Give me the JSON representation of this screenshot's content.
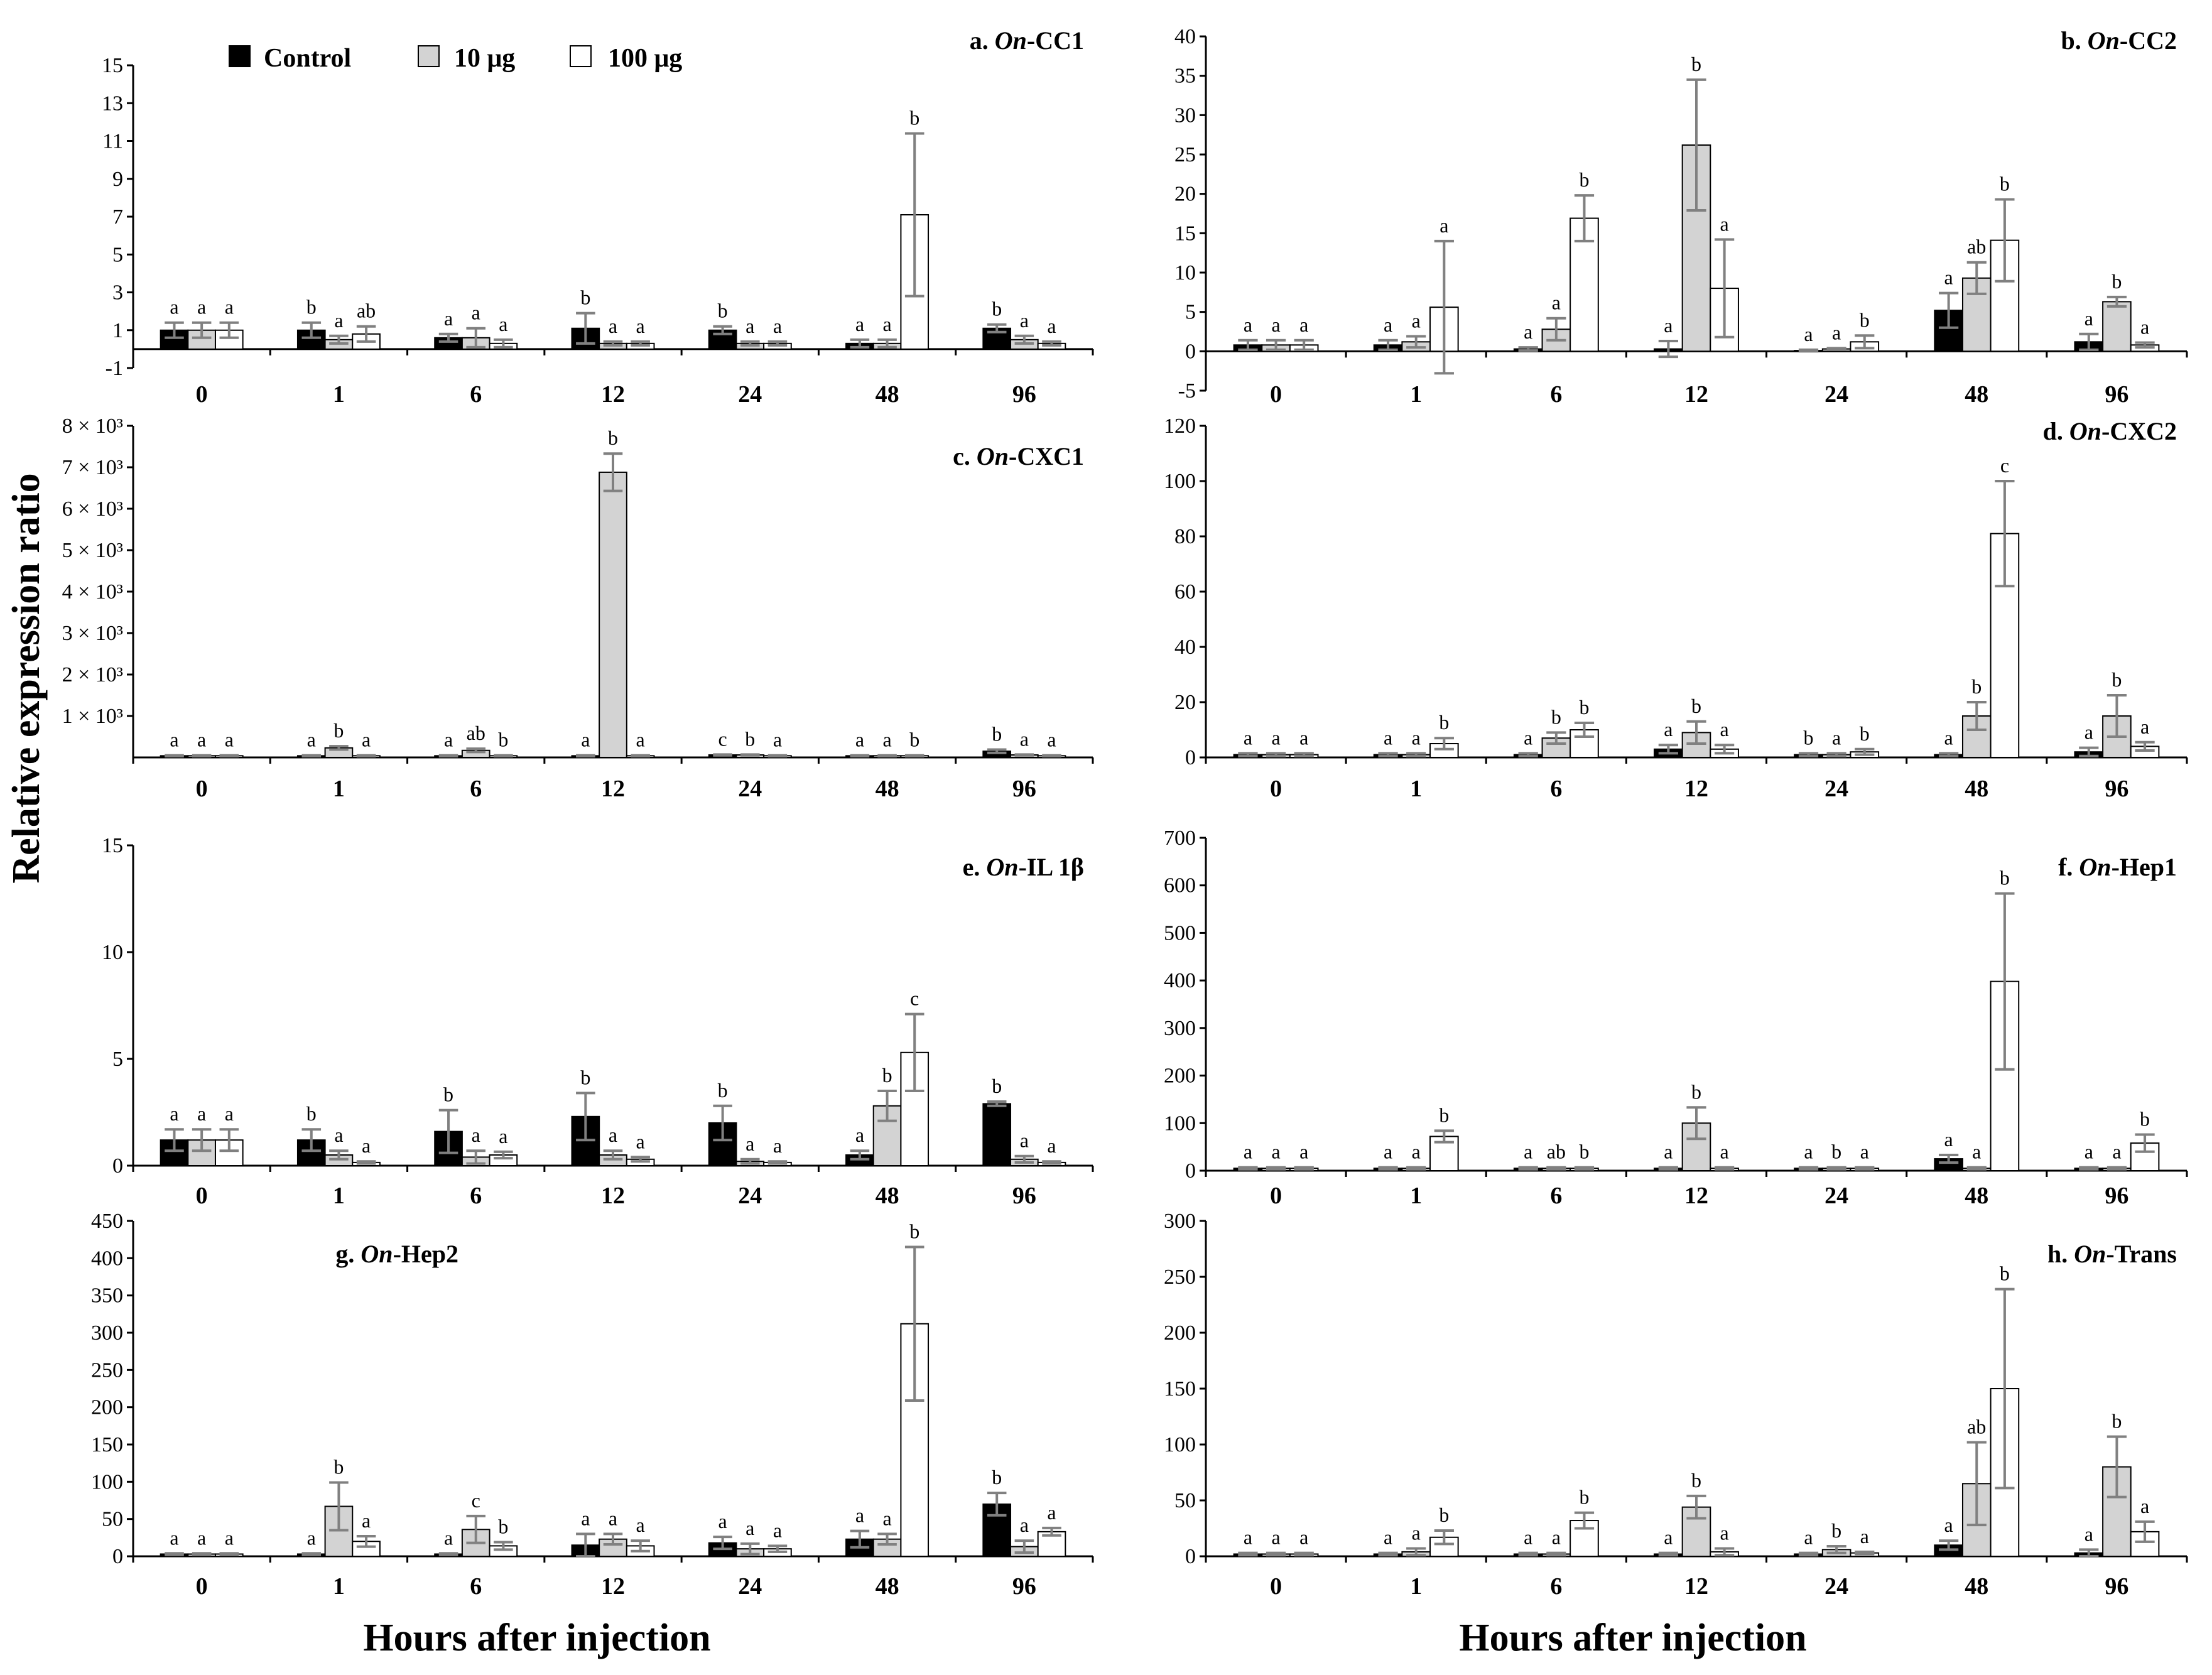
{
  "figure": {
    "y_axis_label": "Relative expression ratio",
    "x_axis_labels": [
      "Hours after injection",
      "Hours after injection"
    ]
  },
  "legend": {
    "items": [
      {
        "label": "Control",
        "color": "#000000"
      },
      {
        "label": "10 μg",
        "color": "#d3d3d3"
      },
      {
        "label": "100 μg",
        "color": "#ffffff"
      }
    ]
  },
  "chart_data": [
    {
      "type": "bar",
      "title": "a. On-CC1",
      "title_prefix": "a. ",
      "title_italic": "On",
      "title_suffix": "-CC1",
      "categories": [
        "0",
        "1",
        "6",
        "12",
        "24",
        "48",
        "96"
      ],
      "ylim": [
        -1,
        15
      ],
      "yticks": [
        -1,
        1,
        3,
        5,
        7,
        9,
        11,
        13,
        15
      ],
      "ytick_labels": [
        "-1",
        "1",
        "3",
        "5",
        "7",
        "9",
        "11",
        "13",
        "15"
      ],
      "series": [
        {
          "name": "Control",
          "values": [
            1.0,
            1.0,
            0.6,
            1.1,
            1.0,
            0.3,
            1.1
          ],
          "errors": [
            0.4,
            0.4,
            0.2,
            0.8,
            0.2,
            0.2,
            0.2
          ],
          "letters": [
            "a",
            "b",
            "a",
            "b",
            "b",
            "a",
            "b"
          ]
        },
        {
          "name": "10 μg",
          "values": [
            1.0,
            0.5,
            0.6,
            0.3,
            0.3,
            0.3,
            0.5
          ],
          "errors": [
            0.4,
            0.2,
            0.5,
            0.1,
            0.1,
            0.2,
            0.2
          ],
          "letters": [
            "a",
            "a",
            "a",
            "a",
            "a",
            "a",
            "a"
          ]
        },
        {
          "name": "100 μg",
          "values": [
            1.0,
            0.8,
            0.3,
            0.3,
            0.3,
            7.1,
            0.3
          ],
          "errors": [
            0.4,
            0.4,
            0.2,
            0.1,
            0.1,
            4.3,
            0.1
          ],
          "letters": [
            "a",
            "ab",
            "a",
            "a",
            "a",
            "b",
            "a"
          ]
        }
      ]
    },
    {
      "type": "bar",
      "title": "b. On-CC2",
      "title_prefix": "b. ",
      "title_italic": "On",
      "title_suffix": "-CC2",
      "categories": [
        "0",
        "1",
        "6",
        "12",
        "24",
        "48",
        "96"
      ],
      "ylim": [
        -5,
        40
      ],
      "yticks": [
        -5,
        0,
        5,
        10,
        15,
        20,
        25,
        30,
        35,
        40
      ],
      "ytick_labels": [
        "-5",
        "0",
        "5",
        "10",
        "15",
        "20",
        "25",
        "30",
        "35",
        "40"
      ],
      "series": [
        {
          "name": "Control",
          "values": [
            0.8,
            0.8,
            0.3,
            0.3,
            0.1,
            5.2,
            1.2
          ],
          "errors": [
            0.6,
            0.6,
            0.2,
            1.0,
            0.1,
            2.2,
            1.0
          ],
          "letters": [
            "a",
            "a",
            "a",
            "a",
            "a",
            "a",
            "a"
          ]
        },
        {
          "name": "10 μg",
          "values": [
            0.8,
            1.2,
            2.8,
            26.2,
            0.3,
            9.3,
            6.3
          ],
          "errors": [
            0.6,
            0.7,
            1.4,
            8.3,
            0.1,
            2.0,
            0.6
          ],
          "letters": [
            "a",
            "a",
            "a",
            "b",
            "a",
            "ab",
            "b"
          ]
        },
        {
          "name": "100 μg",
          "values": [
            0.8,
            5.6,
            16.9,
            8.0,
            1.2,
            14.1,
            0.8
          ],
          "errors": [
            0.6,
            8.4,
            2.9,
            6.2,
            0.8,
            5.2,
            0.3
          ],
          "letters": [
            "a",
            "a",
            "b",
            "a",
            "b",
            "b",
            "a"
          ]
        }
      ]
    },
    {
      "type": "bar",
      "title": "c. On-CXC1",
      "title_prefix": "c. ",
      "title_italic": "On",
      "title_suffix": "-CXC1",
      "categories": [
        "0",
        "1",
        "6",
        "12",
        "24",
        "48",
        "96"
      ],
      "ylim": [
        0,
        8000
      ],
      "yticks": [
        1000,
        2000,
        3000,
        4000,
        5000,
        6000,
        7000,
        8000
      ],
      "ytick_labels": [
        "1 × 10³",
        "2 × 10³",
        "3 × 10³",
        "4 × 10³",
        "5 × 10³",
        "6 × 10³",
        "7 × 10³",
        "8 × 10³"
      ],
      "series": [
        {
          "name": "Control",
          "values": [
            40,
            40,
            40,
            40,
            60,
            40,
            150
          ],
          "errors": [
            10,
            10,
            10,
            10,
            10,
            10,
            40
          ],
          "letters": [
            "a",
            "a",
            "a",
            "a",
            "c",
            "a",
            "b"
          ]
        },
        {
          "name": "10 μg",
          "values": [
            40,
            230,
            170,
            6880,
            60,
            40,
            60
          ],
          "errors": [
            10,
            40,
            40,
            450,
            10,
            10,
            10
          ],
          "letters": [
            "a",
            "b",
            "ab",
            "b",
            "b",
            "a",
            "a"
          ]
        },
        {
          "name": "100 μg",
          "values": [
            40,
            40,
            40,
            40,
            40,
            40,
            40
          ],
          "errors": [
            10,
            10,
            10,
            10,
            10,
            10,
            10
          ],
          "letters": [
            "a",
            "a",
            "b",
            "a",
            "a",
            "b",
            "a"
          ]
        }
      ]
    },
    {
      "type": "bar",
      "title": "d. On-CXC2",
      "title_prefix": "d. ",
      "title_italic": "On",
      "title_suffix": "-CXC2",
      "categories": [
        "0",
        "1",
        "6",
        "12",
        "24",
        "48",
        "96"
      ],
      "ylim": [
        0,
        120
      ],
      "yticks": [
        0,
        20,
        40,
        60,
        80,
        100,
        120
      ],
      "ytick_labels": [
        "0",
        "20",
        "40",
        "60",
        "80",
        "100",
        "120"
      ],
      "series": [
        {
          "name": "Control",
          "values": [
            1.0,
            1.0,
            1.0,
            3.0,
            1.0,
            1.0,
            2.0
          ],
          "errors": [
            0.5,
            0.5,
            0.5,
            1.5,
            0.5,
            0.5,
            1.5
          ],
          "letters": [
            "a",
            "a",
            "a",
            "a",
            "b",
            "a",
            "a"
          ]
        },
        {
          "name": "10 μg",
          "values": [
            1.0,
            1.0,
            7.0,
            9.0,
            1.0,
            15.0,
            15.0
          ],
          "errors": [
            0.5,
            0.5,
            2.0,
            4.0,
            0.5,
            5.0,
            7.5
          ],
          "letters": [
            "a",
            "a",
            "b",
            "b",
            "a",
            "b",
            "b"
          ]
        },
        {
          "name": "100 μg",
          "values": [
            1.0,
            5.0,
            10.0,
            3.0,
            2.0,
            81.0,
            4.0
          ],
          "errors": [
            0.5,
            2.0,
            2.5,
            1.5,
            1.0,
            19.0,
            1.5
          ],
          "letters": [
            "a",
            "b",
            "b",
            "a",
            "b",
            "c",
            "a"
          ]
        }
      ]
    },
    {
      "type": "bar",
      "title": "e. On-IL 1β",
      "title_prefix": "e. ",
      "title_italic": "On",
      "title_suffix": "-IL 1β",
      "categories": [
        "0",
        "1",
        "6",
        "12",
        "24",
        "48",
        "96"
      ],
      "ylim": [
        0,
        15
      ],
      "yticks": [
        0,
        5,
        10,
        15
      ],
      "ytick_labels": [
        "0",
        "5",
        "10",
        "15"
      ],
      "series": [
        {
          "name": "Control",
          "values": [
            1.2,
            1.2,
            1.6,
            2.3,
            2.0,
            0.5,
            2.9
          ],
          "errors": [
            0.5,
            0.5,
            1.0,
            1.1,
            0.8,
            0.2,
            0.1
          ],
          "letters": [
            "a",
            "b",
            "b",
            "b",
            "b",
            "a",
            "b"
          ]
        },
        {
          "name": "10 μg",
          "values": [
            1.2,
            0.5,
            0.4,
            0.5,
            0.2,
            2.8,
            0.3
          ],
          "errors": [
            0.5,
            0.2,
            0.3,
            0.2,
            0.1,
            0.7,
            0.15
          ],
          "letters": [
            "a",
            "a",
            "a",
            "a",
            "a",
            "b",
            "a"
          ]
        },
        {
          "name": "100 μg",
          "values": [
            1.2,
            0.15,
            0.5,
            0.3,
            0.15,
            5.3,
            0.15
          ],
          "errors": [
            0.5,
            0.05,
            0.15,
            0.1,
            0.05,
            1.8,
            0.05
          ],
          "letters": [
            "a",
            "a",
            "a",
            "a",
            "a",
            "c",
            "a"
          ]
        }
      ]
    },
    {
      "type": "bar",
      "title": "f. On-Hep1",
      "title_prefix": "f. ",
      "title_italic": "On",
      "title_suffix": "-Hep1",
      "categories": [
        "0",
        "1",
        "6",
        "12",
        "24",
        "48",
        "96"
      ],
      "ylim": [
        0,
        700
      ],
      "yticks": [
        0,
        100,
        200,
        300,
        400,
        500,
        600,
        700
      ],
      "ytick_labels": [
        "0",
        "100",
        "200",
        "300",
        "400",
        "500",
        "600",
        "700"
      ],
      "series": [
        {
          "name": "Control",
          "values": [
            5,
            5,
            5,
            5,
            5,
            25,
            5
          ],
          "errors": [
            2,
            2,
            2,
            2,
            2,
            8,
            2
          ],
          "letters": [
            "a",
            "a",
            "a",
            "a",
            "a",
            "a",
            "a"
          ]
        },
        {
          "name": "10 μg",
          "values": [
            5,
            5,
            5,
            100,
            5,
            5,
            5
          ],
          "errors": [
            2,
            2,
            2,
            33,
            2,
            2,
            2
          ],
          "letters": [
            "a",
            "a",
            "ab",
            "b",
            "b",
            "a",
            "a"
          ]
        },
        {
          "name": "100 μg",
          "values": [
            5,
            72,
            5,
            5,
            5,
            398,
            58
          ],
          "errors": [
            2,
            12,
            2,
            2,
            2,
            185,
            18
          ],
          "letters": [
            "a",
            "b",
            "b",
            "a",
            "a",
            "b",
            "b"
          ]
        }
      ]
    },
    {
      "type": "bar",
      "title": "g. On-Hep2",
      "title_prefix": "g. ",
      "title_italic": "On",
      "title_suffix": "-Hep2",
      "categories": [
        "0",
        "1",
        "6",
        "12",
        "24",
        "48",
        "96"
      ],
      "ylim": [
        0,
        450
      ],
      "yticks": [
        0,
        50,
        100,
        150,
        200,
        250,
        300,
        350,
        400,
        450
      ],
      "ytick_labels": [
        "0",
        "50",
        "100",
        "150",
        "200",
        "250",
        "300",
        "350",
        "400",
        "450"
      ],
      "series": [
        {
          "name": "Control",
          "values": [
            3,
            3,
            3,
            15,
            18,
            23,
            70
          ],
          "errors": [
            1,
            1,
            1,
            15,
            8,
            11,
            15
          ],
          "letters": [
            "a",
            "a",
            "a",
            "a",
            "a",
            "a",
            "b"
          ]
        },
        {
          "name": "10 μg",
          "values": [
            3,
            67,
            36,
            23,
            10,
            23,
            13
          ],
          "errors": [
            1,
            32,
            18,
            7,
            7,
            7,
            8
          ],
          "letters": [
            "a",
            "b",
            "c",
            "a",
            "a",
            "a",
            "a"
          ]
        },
        {
          "name": "100 μg",
          "values": [
            3,
            20,
            14,
            14,
            10,
            312,
            33
          ],
          "errors": [
            1,
            7,
            5,
            7,
            4,
            103,
            5
          ],
          "letters": [
            "a",
            "a",
            "b",
            "a",
            "a",
            "b",
            "a"
          ]
        }
      ]
    },
    {
      "type": "bar",
      "title": "h. On-Trans",
      "title_prefix": "h. ",
      "title_italic": "On",
      "title_suffix": "-Trans",
      "categories": [
        "0",
        "1",
        "6",
        "12",
        "24",
        "48",
        "96"
      ],
      "ylim": [
        0,
        300
      ],
      "yticks": [
        0,
        50,
        100,
        150,
        200,
        250,
        300
      ],
      "ytick_labels": [
        "0",
        "50",
        "100",
        "150",
        "200",
        "250",
        "300"
      ],
      "series": [
        {
          "name": "Control",
          "values": [
            2,
            2,
            2,
            2,
            2,
            10,
            3
          ],
          "errors": [
            1,
            1,
            1,
            1,
            1,
            4,
            3
          ],
          "letters": [
            "a",
            "a",
            "a",
            "a",
            "a",
            "a",
            "a"
          ]
        },
        {
          "name": "10 μg",
          "values": [
            2,
            4,
            2,
            44,
            6,
            65,
            80
          ],
          "errors": [
            1,
            3,
            1,
            10,
            3,
            37,
            27
          ],
          "letters": [
            "a",
            "a",
            "a",
            "b",
            "b",
            "ab",
            "b"
          ]
        },
        {
          "name": "100 μg",
          "values": [
            2,
            17,
            32,
            4,
            3,
            150,
            22
          ],
          "errors": [
            1,
            6,
            7,
            3,
            1,
            89,
            9
          ],
          "letters": [
            "a",
            "b",
            "b",
            "a",
            "a",
            "b",
            "a"
          ]
        }
      ]
    }
  ]
}
